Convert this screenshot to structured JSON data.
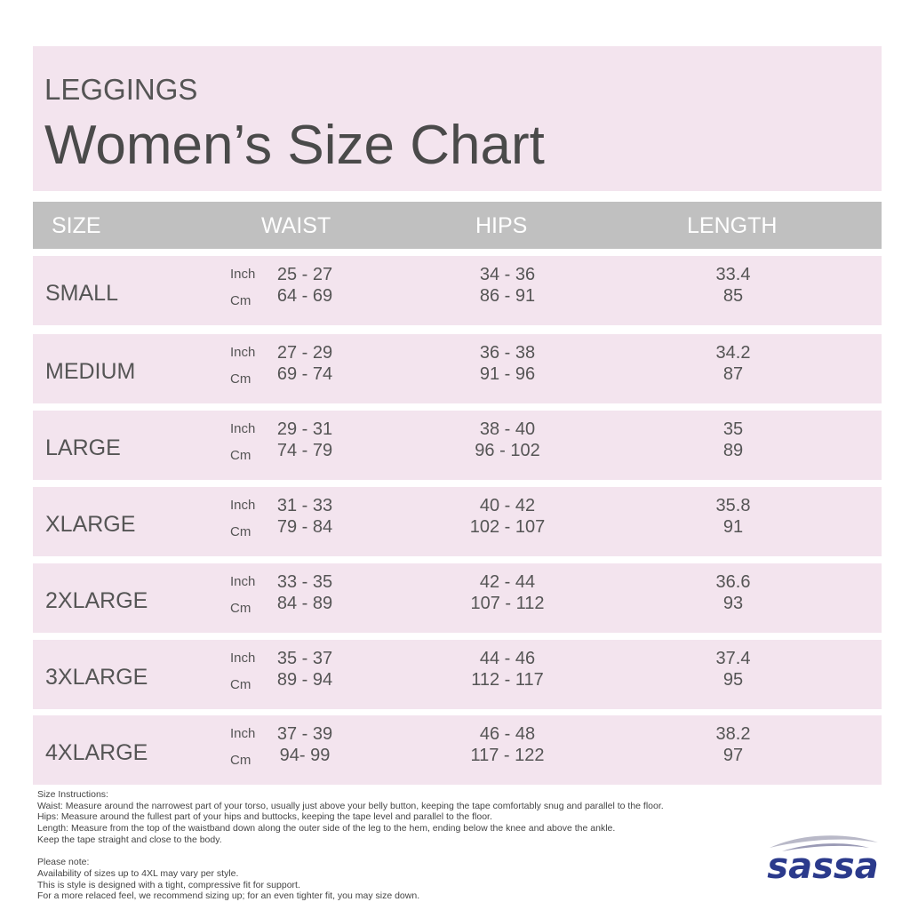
{
  "header": {
    "subtitle": "LEGGINGS",
    "title": "Women’s Size Chart"
  },
  "table": {
    "columns": [
      "SIZE",
      "WAIST",
      "HIPS",
      "LENGTH"
    ],
    "units": [
      "Inch",
      "Cm"
    ],
    "rows": [
      {
        "size": "SMALL",
        "waist_inch": "25 - 27",
        "waist_cm": "64 - 69",
        "hips_inch": "34 - 36",
        "hips_cm": "86 - 91",
        "length_inch": "33.4",
        "length_cm": "85"
      },
      {
        "size": "MEDIUM",
        "waist_inch": "27 - 29",
        "waist_cm": "69 - 74",
        "hips_inch": "36 - 38",
        "hips_cm": "91 - 96",
        "length_inch": "34.2",
        "length_cm": "87"
      },
      {
        "size": "LARGE",
        "waist_inch": "29 - 31",
        "waist_cm": "74 - 79",
        "hips_inch": "38 - 40",
        "hips_cm": "96 - 102",
        "length_inch": "35",
        "length_cm": "89"
      },
      {
        "size": "XLARGE",
        "waist_inch": "31 - 33",
        "waist_cm": "79 - 84",
        "hips_inch": "40 - 42",
        "hips_cm": "102 - 107",
        "length_inch": "35.8",
        "length_cm": "91"
      },
      {
        "size": "2XLARGE",
        "waist_inch": "33 - 35",
        "waist_cm": "84 - 89",
        "hips_inch": "42 - 44",
        "hips_cm": "107 - 112",
        "length_inch": "36.6",
        "length_cm": "93"
      },
      {
        "size": "3XLARGE",
        "waist_inch": "35 - 37",
        "waist_cm": "89 - 94",
        "hips_inch": "44 - 46",
        "hips_cm": "112 - 117",
        "length_inch": "37.4",
        "length_cm": "95"
      },
      {
        "size": "4XLARGE",
        "waist_inch": "37 - 39",
        "waist_cm": "94- 99",
        "hips_inch": "46 - 48",
        "hips_cm": "117 - 122",
        "length_inch": "38.2",
        "length_cm": "97"
      }
    ]
  },
  "notes": {
    "instructions": [
      "Size Instructions:",
      "Waist: Measure around the narrowest part of your torso, usually just above your belly button, keeping the tape comfortably snug and parallel to the floor.",
      "Hips: Measure around the fullest part of your hips and buttocks, keeping the tape level and parallel to the floor.",
      "Length: Measure from the top of the waistband down along the outer side of the leg to the hem, ending below the knee and above the ankle.",
      "Keep the tape straight and close to the body."
    ],
    "please_note": [
      "Please note:",
      "Availability of sizes up to 4XL may vary per style.",
      "This is style is designed with a tight, compressive fit for support.",
      "For a more relaced feel, we recommend sizing up; for an even tighter fit, you may size down."
    ]
  },
  "logo": "sassa"
}
